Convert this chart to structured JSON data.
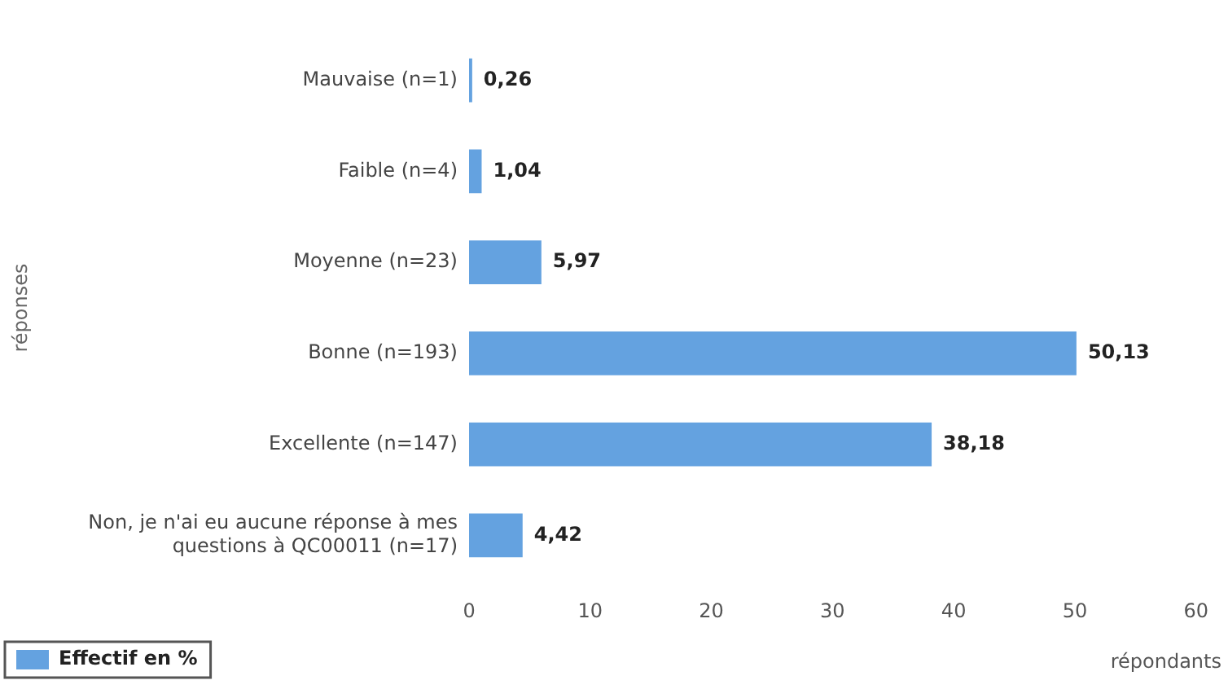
{
  "chart_data": {
    "type": "bar",
    "orientation": "horizontal",
    "categories": [
      "Mauvaise (n=1)",
      "Faible (n=4)",
      "Moyenne (n=23)",
      "Bonne (n=193)",
      "Excellente (n=147)",
      "Non, je n'ai eu aucune réponse à mes questions à QC00011 (n=17)"
    ],
    "series": [
      {
        "name": "Effectif en %",
        "color": "#64a2e0",
        "values": [
          0.26,
          1.04,
          5.97,
          50.13,
          38.18,
          4.42
        ],
        "value_labels": [
          "0,26",
          "1,04",
          "5,97",
          "50,13",
          "38,18",
          "4,42"
        ]
      }
    ],
    "xlim": [
      0,
      60
    ],
    "xticks": [
      0,
      10,
      20,
      30,
      40,
      50,
      60
    ],
    "xlabel": "répondants",
    "ylabel": "réponses",
    "legend": "bottom left",
    "grid": false
  }
}
